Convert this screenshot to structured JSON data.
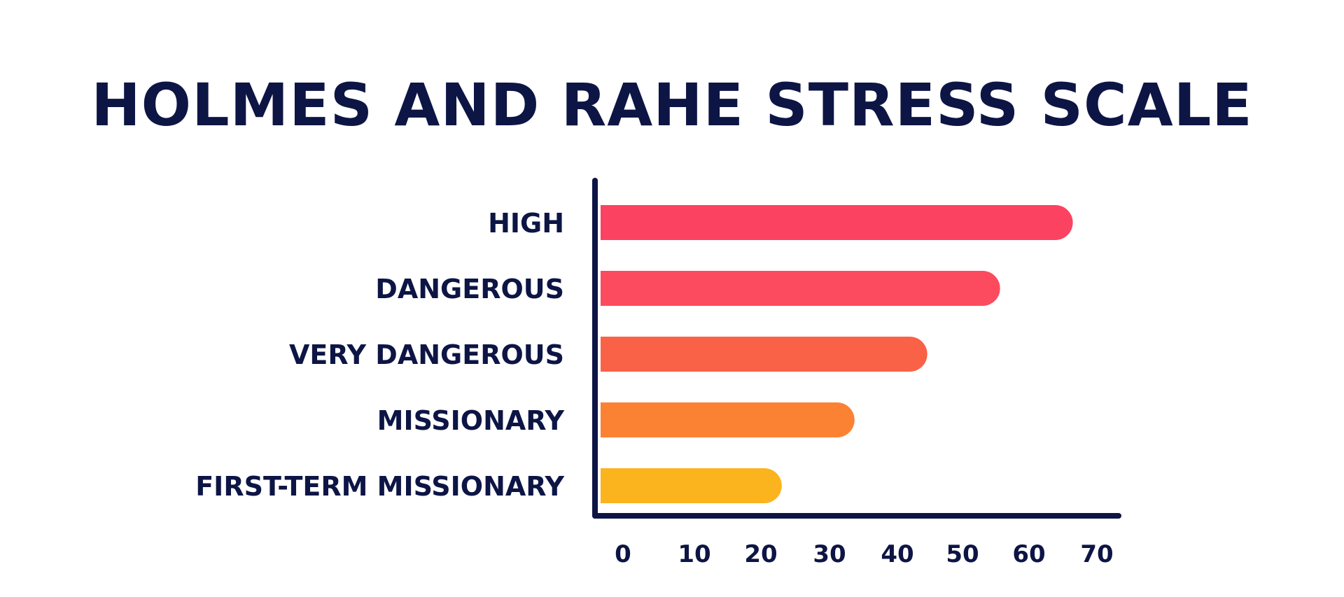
{
  "chart_data": {
    "type": "bar",
    "orientation": "horizontal",
    "title": "HOLMES AND RAHE STRESS SCALE",
    "categories": [
      "HIGH",
      "DANGEROUS",
      "VERY DANGEROUS",
      "MISSIONARY",
      "FIRST-TERM MISSIONARY"
    ],
    "values": [
      68,
      57,
      46,
      35,
      24
    ],
    "xlim": [
      0,
      70
    ],
    "x_ticks": [
      "0",
      "10",
      "20",
      "30",
      "40",
      "50",
      "60",
      "70"
    ],
    "grid": false,
    "legend": "none",
    "bar_colors": [
      "#fc4261",
      "#fc4a5e",
      "#fa6247",
      "#fa8232",
      "#fbb41d"
    ],
    "axis_color": "#0d1545",
    "text_color": "#0d1545"
  }
}
